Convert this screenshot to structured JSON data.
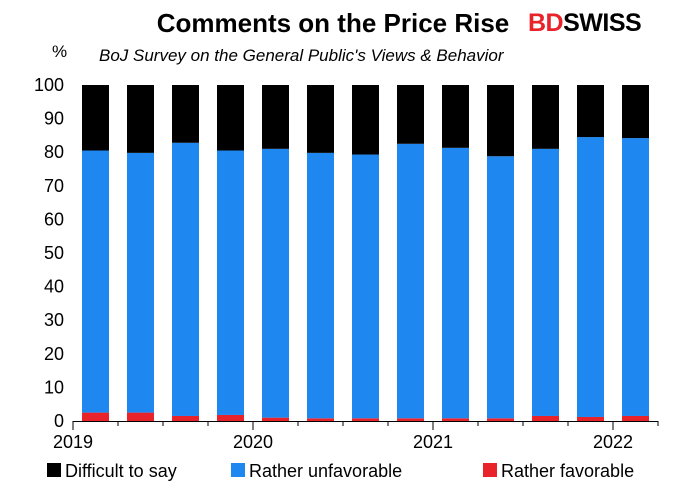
{
  "brand": {
    "part1": "BD",
    "part2": "SWISS",
    "color1": "#e8232a",
    "color2": "#000000"
  },
  "chart_data": {
    "type": "bar",
    "stacked": true,
    "title": "Comments on the Price Rise",
    "subtitle": "BoJ Survey on the General Public's Views & Behavior",
    "ylabel": "%",
    "ylim": [
      0,
      100
    ],
    "yticks": [
      0,
      10,
      20,
      30,
      40,
      50,
      60,
      70,
      80,
      90,
      100
    ],
    "xtick_labels": [
      {
        "label": "2019",
        "index": 0
      },
      {
        "label": "2020",
        "index": 4
      },
      {
        "label": "2021",
        "index": 8
      },
      {
        "label": "2022",
        "index": 12
      }
    ],
    "bar_count": 13,
    "legend_position": "bottom",
    "series": [
      {
        "name": "Rather favorable",
        "color": "#e8232a",
        "values": [
          2.5,
          2.5,
          1.5,
          1.8,
          1.0,
          0.8,
          0.8,
          0.8,
          0.8,
          0.8,
          1.5,
          1.2,
          1.5
        ]
      },
      {
        "name": "Rather unfavorable",
        "color": "#1e87f0",
        "values": [
          78.0,
          77.3,
          81.3,
          78.7,
          80.0,
          79.0,
          78.5,
          81.7,
          80.5,
          78.0,
          79.5,
          83.3,
          82.7
        ]
      },
      {
        "name": "Difficult to say",
        "color": "#000000",
        "values": [
          19.5,
          20.2,
          17.2,
          19.5,
          19.0,
          20.2,
          20.7,
          17.5,
          18.7,
          21.2,
          19.0,
          15.5,
          15.8
        ]
      }
    ],
    "legend_order": [
      "Difficult to say",
      "Rather unfavorable",
      "Rather favorable"
    ]
  }
}
